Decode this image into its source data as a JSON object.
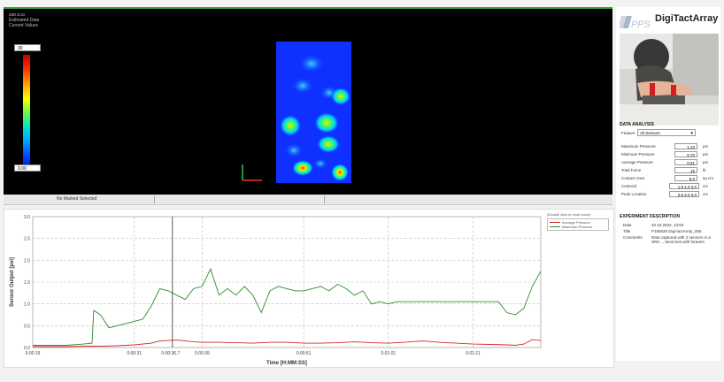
{
  "viewer": {
    "title_lines": "ɕɑɒ.ɞ.ɜɔ\nEstimated Data\nCurrent Values",
    "scale_max": "30",
    "scale_min": "0.00",
    "status_label": "No Marked Selected"
  },
  "app": {
    "logo_text": "PPS",
    "title": "DigiTactArray"
  },
  "analysis": {
    "title": "DATA ANALYSIS",
    "feature_label": "Feature",
    "feature_value": "All Sensors",
    "rows": [
      {
        "label": "Maximum Pressure",
        "value": "1.10",
        "unit": "psi"
      },
      {
        "label": "Minimum Pressure",
        "value": "0.70",
        "unit": "psi"
      },
      {
        "label": "Average Pressure",
        "value": "0.51",
        "unit": "psi"
      },
      {
        "label": "Total Force",
        "value": "15",
        "unit": "lb"
      },
      {
        "label": "Contact Area",
        "value": "9.0",
        "unit": "sq cm"
      },
      {
        "label": "Centroid",
        "value": "1.5 1.0 3.0",
        "unit": "cm"
      },
      {
        "label": "Peak Location",
        "value": "2.5 2.0 3.0",
        "unit": "cm"
      }
    ]
  },
  "experiment": {
    "title": "EXPERIMENT DESCRIPTION",
    "date_label": "Date",
    "date_value": "20.10.2022, 13:53",
    "title_label": "Title",
    "title_value": "P180020 Digi-tactArray_005",
    "comments_label": "Comments",
    "comments_value": "Data captured with 2 sensors in a SRS ... bend test with forearm"
  },
  "chart_data": {
    "type": "line",
    "ylabel": "Sensor Output [psi]",
    "xlabel": "Time [H:MM:SS]",
    "ylim": [
      0,
      3.0
    ],
    "yticks": [
      "0.0",
      "0.5",
      "1.0",
      "1.5",
      "2.0",
      "2.5",
      "3.0"
    ],
    "xlim": [
      19,
      79
    ],
    "xticks": [
      {
        "t": 19,
        "label": "0:00:19"
      },
      {
        "t": 31,
        "label": "0:00:31"
      },
      {
        "t": 39,
        "label": "0:00:39"
      },
      {
        "t": 51,
        "label": "0:00:51"
      },
      {
        "t": 61,
        "label": "0:01:01"
      },
      {
        "t": 71,
        "label": "0:01:11"
      }
    ],
    "cursor": {
      "t": 35.5,
      "label": "0:00:36.7"
    },
    "legend_header": "(Double click to reset zoom)",
    "series": [
      {
        "name": "Average Pressure",
        "color": "#d12a2a",
        "x": [
          19,
          21,
          23,
          25,
          27,
          29,
          31,
          33,
          34,
          35,
          36,
          37,
          38,
          39,
          41,
          43,
          45,
          47,
          49,
          51,
          53,
          55,
          57,
          59,
          61,
          63,
          65,
          67,
          69,
          71,
          73,
          75,
          76,
          77,
          78,
          79
        ],
        "y": [
          0.02,
          0.02,
          0.02,
          0.03,
          0.03,
          0.04,
          0.06,
          0.1,
          0.15,
          0.16,
          0.17,
          0.15,
          0.13,
          0.12,
          0.12,
          0.11,
          0.1,
          0.12,
          0.12,
          0.1,
          0.1,
          0.11,
          0.13,
          0.11,
          0.1,
          0.12,
          0.15,
          0.12,
          0.1,
          0.08,
          0.07,
          0.06,
          0.05,
          0.08,
          0.18,
          0.16
        ]
      },
      {
        "name": "Maximum Pressure",
        "color": "#2e8b2e",
        "x": [
          19,
          21,
          23,
          25,
          26,
          26.2,
          27,
          28,
          29,
          30,
          31,
          32,
          33,
          34,
          35,
          36,
          37,
          38,
          39,
          40,
          41,
          42,
          43,
          44,
          45,
          46,
          47,
          48,
          49,
          50,
          51,
          52,
          53,
          54,
          55,
          56,
          57,
          58,
          59,
          60,
          61,
          62,
          63,
          64,
          65,
          66,
          67,
          68,
          69,
          70,
          71,
          72,
          73,
          74,
          75,
          76,
          77,
          78,
          79
        ],
        "y": [
          0.05,
          0.05,
          0.05,
          0.08,
          0.1,
          0.85,
          0.75,
          0.45,
          0.5,
          0.55,
          0.6,
          0.65,
          0.95,
          1.35,
          1.3,
          1.2,
          1.1,
          1.35,
          1.4,
          1.8,
          1.2,
          1.35,
          1.2,
          1.4,
          1.2,
          0.8,
          1.3,
          1.4,
          1.35,
          1.3,
          1.3,
          1.35,
          1.4,
          1.3,
          1.45,
          1.35,
          1.2,
          1.3,
          1.0,
          1.05,
          1.0,
          1.05,
          1.05,
          1.05,
          1.05,
          1.05,
          1.05,
          1.05,
          1.05,
          1.05,
          1.05,
          1.05,
          1.05,
          1.05,
          0.8,
          0.75,
          0.9,
          1.4,
          1.75
        ]
      }
    ]
  }
}
